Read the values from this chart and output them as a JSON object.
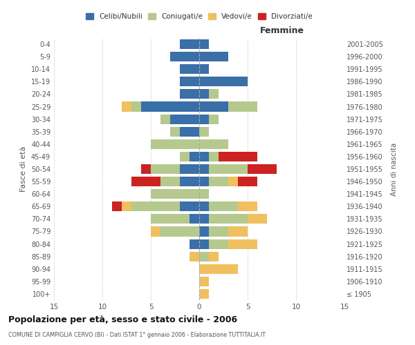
{
  "age_groups": [
    "100+",
    "95-99",
    "90-94",
    "85-89",
    "80-84",
    "75-79",
    "70-74",
    "65-69",
    "60-64",
    "55-59",
    "50-54",
    "45-49",
    "40-44",
    "35-39",
    "30-34",
    "25-29",
    "20-24",
    "15-19",
    "10-14",
    "5-9",
    "0-4"
  ],
  "birth_years": [
    "≤ 1905",
    "1906-1910",
    "1911-1915",
    "1916-1920",
    "1921-1925",
    "1926-1930",
    "1931-1935",
    "1936-1940",
    "1941-1945",
    "1946-1950",
    "1951-1955",
    "1956-1960",
    "1961-1965",
    "1966-1970",
    "1971-1975",
    "1976-1980",
    "1981-1985",
    "1986-1990",
    "1991-1995",
    "1996-2000",
    "2001-2005"
  ],
  "colors": {
    "celibi": "#3a6fa8",
    "coniugati": "#b5c98e",
    "vedovi": "#f0c060",
    "divorziati": "#cc2222"
  },
  "males": {
    "celibi": [
      0,
      0,
      0,
      0,
      1,
      0,
      1,
      2,
      0,
      2,
      2,
      1,
      0,
      2,
      3,
      6,
      2,
      2,
      2,
      3,
      2
    ],
    "coniugati": [
      0,
      0,
      0,
      0,
      0,
      4,
      4,
      5,
      5,
      2,
      3,
      1,
      5,
      1,
      1,
      1,
      0,
      0,
      0,
      0,
      0
    ],
    "vedovi": [
      0,
      0,
      0,
      1,
      0,
      1,
      0,
      1,
      0,
      0,
      0,
      0,
      0,
      0,
      0,
      1,
      0,
      0,
      0,
      0,
      0
    ],
    "divorziati": [
      0,
      0,
      0,
      0,
      0,
      0,
      0,
      1,
      0,
      3,
      1,
      0,
      0,
      0,
      0,
      0,
      0,
      0,
      0,
      0,
      0
    ]
  },
  "females": {
    "nubili": [
      0,
      0,
      0,
      0,
      1,
      1,
      1,
      1,
      0,
      1,
      1,
      1,
      0,
      0,
      1,
      3,
      1,
      5,
      1,
      3,
      1
    ],
    "coniugate": [
      0,
      0,
      0,
      1,
      2,
      2,
      4,
      3,
      1,
      2,
      4,
      1,
      3,
      1,
      1,
      3,
      1,
      0,
      0,
      0,
      0
    ],
    "vedove": [
      1,
      1,
      4,
      1,
      3,
      2,
      2,
      2,
      0,
      1,
      0,
      0,
      0,
      0,
      0,
      0,
      0,
      0,
      0,
      0,
      0
    ],
    "divorziate": [
      0,
      0,
      0,
      0,
      0,
      0,
      0,
      0,
      0,
      2,
      3,
      4,
      0,
      0,
      0,
      0,
      0,
      0,
      0,
      0,
      0
    ]
  },
  "xlim": 15,
  "title": "Popolazione per età, sesso e stato civile - 2006",
  "subtitle": "COMUNE DI CAMPIGLIA CERVO (BI) - Dati ISTAT 1° gennaio 2006 - Elaborazione TUTTITALIA.IT",
  "xlabel_right": "Femmine",
  "ylabel_left": "Fasce di età",
  "ylabel_right": "Anni di nascita",
  "legend_labels": [
    "Celibi/Nubili",
    "Coniugati/e",
    "Vedovi/e",
    "Divorziati/e"
  ]
}
